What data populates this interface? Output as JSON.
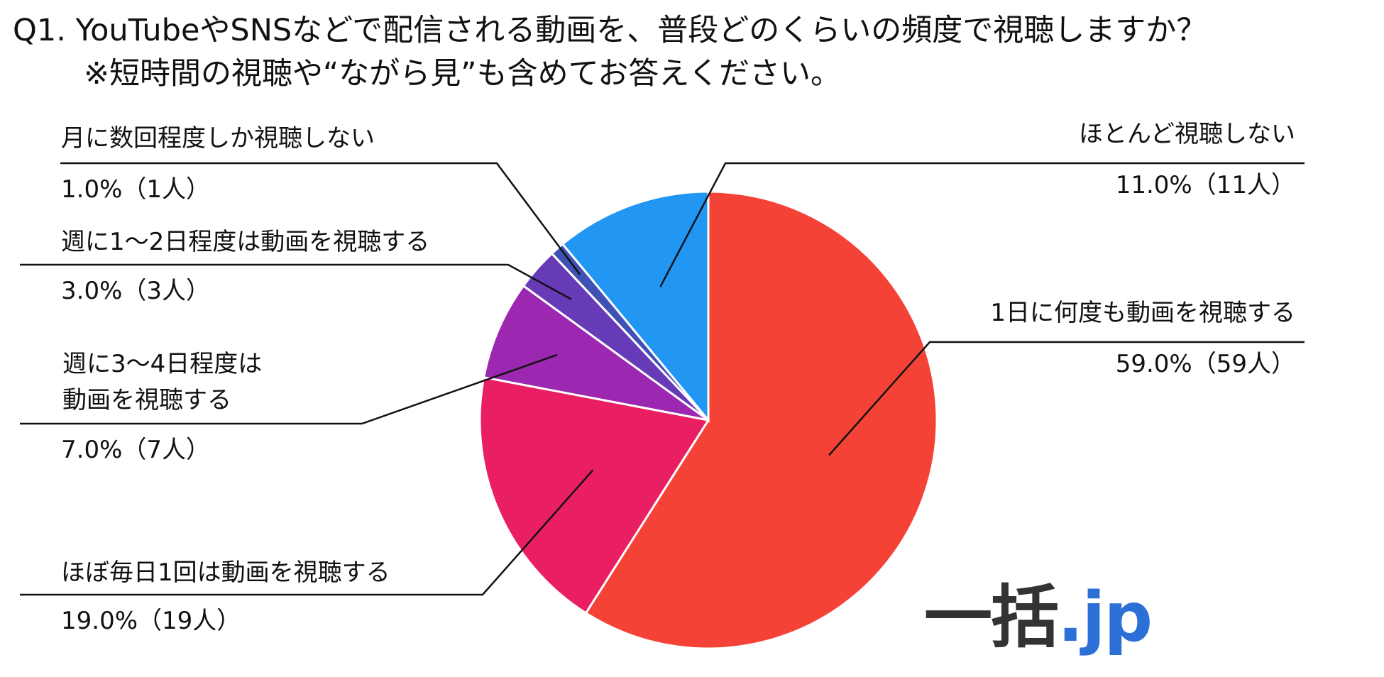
{
  "title": {
    "line1": "Q1. YouTubeやSNSなどで配信される動画を、普段どのくらいの頻度で視聴しますか？",
    "line2": "※短時間の視聴や“ながら見”も含めてお答えください。"
  },
  "chart_data": {
    "type": "pie",
    "start": "12 o'clock, clockwise",
    "slices": [
      {
        "label": "1日に何度も動画を視聴する",
        "value": 59.0,
        "value_text": "59.0%（59人）",
        "color": "#f44336"
      },
      {
        "label": "ほぼ毎日1回は動画を視聴する",
        "value": 19.0,
        "value_text": "19.0%（19人）",
        "color": "#e91e63"
      },
      {
        "label": "週に3〜4日程度は動画を視聴する",
        "label_lines": [
          "週に3〜4日程度は",
          "動画を視聴する"
        ],
        "value": 7.0,
        "value_text": "7.0%（7人）",
        "color": "#9c27b0"
      },
      {
        "label": "週に1〜2日程度は動画を視聴する",
        "value": 3.0,
        "value_text": "3.0%（3人）",
        "color": "#673ab7"
      },
      {
        "label": "月に数回程度しか視聴しない",
        "value": 1.0,
        "value_text": "1.0%（1人）",
        "color": "#3f51b5"
      },
      {
        "label": "ほとんど視聴しない",
        "value": 11.0,
        "value_text": "11.0%（11人）",
        "color": "#2196f3"
      }
    ]
  },
  "logo": {
    "main": "一括",
    "tld": ".jp"
  }
}
